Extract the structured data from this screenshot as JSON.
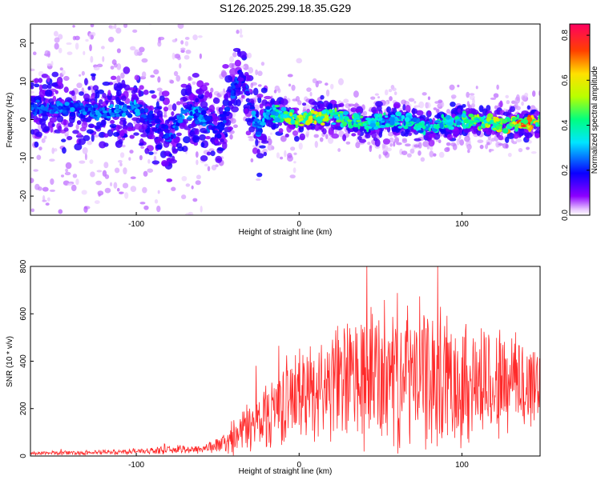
{
  "title": "S126.2025.299.18.35.G29",
  "chart_data": [
    {
      "type": "heatmap",
      "xlabel": "Height of straight line (km)",
      "ylabel": "Frequency (Hz)",
      "xlim": [
        -165,
        148
      ],
      "ylim": [
        -25,
        25
      ],
      "xticks": [
        -100,
        0,
        100
      ],
      "yticks": [
        -20,
        -10,
        0,
        10,
        20
      ],
      "colorbar": {
        "label": "Normalized spectral amplitude",
        "range": [
          0.0,
          0.85
        ],
        "ticks": [
          0.0,
          0.2,
          0.4,
          0.6,
          0.8
        ]
      },
      "ridge": {
        "x": [
          -160,
          -140,
          -120,
          -100,
          -90,
          -80,
          -70,
          -60,
          -50,
          -40,
          -35,
          -30,
          -25,
          -20,
          -10,
          0,
          10,
          20,
          40,
          60,
          80,
          100,
          120,
          140,
          148
        ],
        "y": [
          3,
          3,
          2,
          3,
          0,
          -5,
          2,
          1,
          -4,
          8,
          12,
          3,
          -3,
          2,
          1,
          0,
          1,
          1,
          -1,
          0,
          -2,
          0,
          -1,
          -1,
          -1
        ],
        "amplitude": [
          0.25,
          0.3,
          0.28,
          0.3,
          0.2,
          0.25,
          0.3,
          0.3,
          0.2,
          0.25,
          0.2,
          0.3,
          0.3,
          0.35,
          0.5,
          0.55,
          0.65,
          0.5,
          0.45,
          0.4,
          0.4,
          0.45,
          0.6,
          0.75,
          0.6
        ]
      }
    },
    {
      "type": "line",
      "xlabel": "Height of straight line (km)",
      "ylabel": "SNR (10 * v/v)",
      "xlim": [
        -165,
        148
      ],
      "ylim": [
        0,
        800
      ],
      "xticks": [
        -100,
        0,
        100
      ],
      "yticks": [
        0,
        200,
        400,
        600,
        800
      ],
      "color": "#ff2a2a",
      "envelope": {
        "x": [
          -165,
          -120,
          -80,
          -60,
          -50,
          -40,
          -35,
          -30,
          -20,
          -10,
          0,
          10,
          20,
          30,
          40,
          60,
          80,
          100,
          120,
          140,
          148
        ],
        "mean": [
          12,
          15,
          25,
          30,
          45,
          70,
          110,
          120,
          180,
          230,
          260,
          290,
          300,
          320,
          330,
          340,
          330,
          320,
          310,
          300,
          300
        ],
        "spread": [
          8,
          10,
          15,
          20,
          30,
          60,
          90,
          110,
          150,
          170,
          190,
          200,
          230,
          260,
          300,
          300,
          290,
          270,
          240,
          220,
          220
        ]
      }
    }
  ]
}
